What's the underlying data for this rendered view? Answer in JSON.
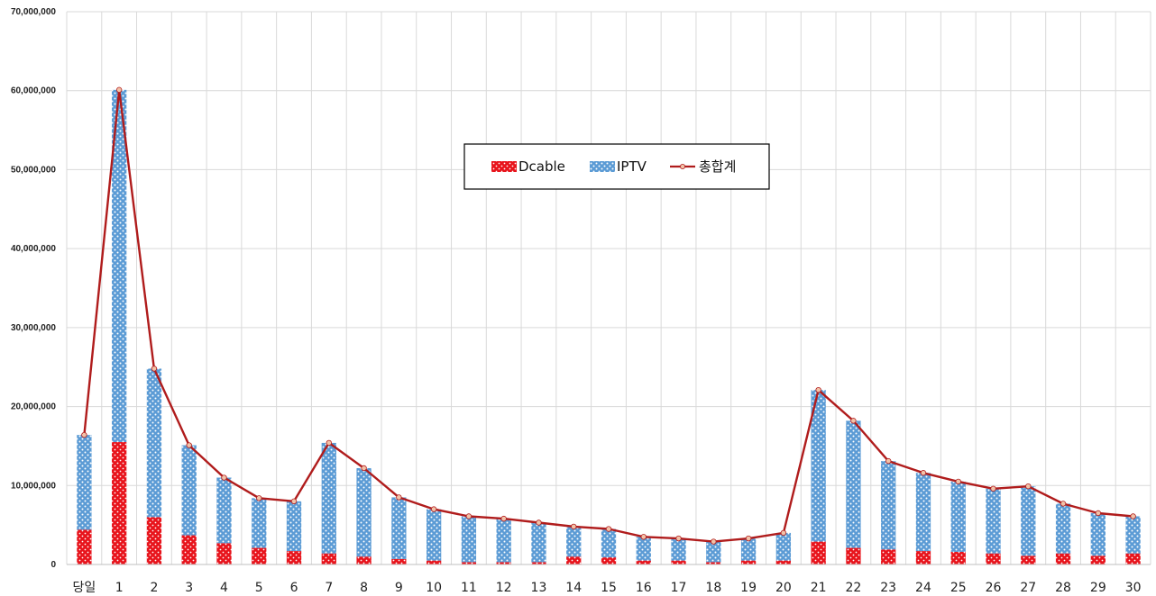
{
  "chart_data": {
    "type": "bar",
    "stacked": true,
    "categories": [
      "당일",
      "1",
      "2",
      "3",
      "4",
      "5",
      "6",
      "7",
      "8",
      "9",
      "10",
      "11",
      "12",
      "13",
      "14",
      "15",
      "16",
      "17",
      "18",
      "19",
      "20",
      "21",
      "22",
      "23",
      "24",
      "25",
      "26",
      "27",
      "28",
      "29",
      "30"
    ],
    "series": [
      {
        "name": "Dcable",
        "kind": "bar",
        "color": "#e8141c",
        "values": [
          4400000,
          15500000,
          6000000,
          3700000,
          2700000,
          2100000,
          1700000,
          1400000,
          1000000,
          700000,
          500000,
          300000,
          300000,
          300000,
          1000000,
          900000,
          500000,
          500000,
          300000,
          500000,
          500000,
          2900000,
          2100000,
          1900000,
          1700000,
          1600000,
          1400000,
          1100000,
          1400000,
          1100000,
          1400000
        ]
      },
      {
        "name": "IPTV",
        "kind": "bar",
        "color": "#5b9bd5",
        "values": [
          12000000,
          44600000,
          18800000,
          11400000,
          8300000,
          6300000,
          6300000,
          14000000,
          11200000,
          7800000,
          6500000,
          5800000,
          5500000,
          5000000,
          3800000,
          3600000,
          3000000,
          2800000,
          2600000,
          2800000,
          3500000,
          19200000,
          16100000,
          11200000,
          9900000,
          8900000,
          8200000,
          8800000,
          6300000,
          5400000,
          4700000
        ]
      },
      {
        "name": "총합계",
        "kind": "line",
        "color": "#b01c1c",
        "values": [
          16400000,
          60100000,
          24800000,
          15100000,
          11000000,
          8400000,
          8000000,
          15400000,
          12200000,
          8500000,
          7000000,
          6100000,
          5800000,
          5300000,
          4800000,
          4500000,
          3500000,
          3300000,
          2900000,
          3300000,
          4000000,
          22100000,
          18200000,
          13100000,
          11600000,
          10500000,
          9600000,
          9900000,
          7700000,
          6500000,
          6100000
        ]
      }
    ],
    "yticks": [
      "0",
      "10,000,000",
      "20,000,000",
      "30,000,000",
      "40,000,000",
      "50,000,000",
      "60,000,000",
      "70,000,000"
    ],
    "ylim": [
      0,
      70000000
    ],
    "grid": true,
    "legend": "top-center"
  }
}
